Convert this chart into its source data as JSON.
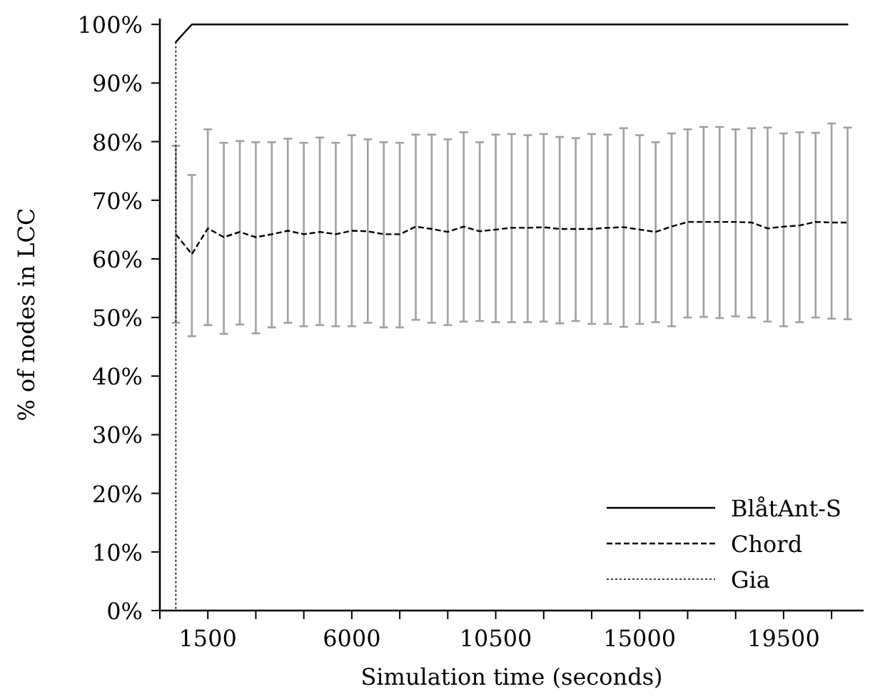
{
  "chart_data": {
    "type": "line",
    "xlabel": "Simulation time (seconds)",
    "ylabel": "% of nodes in LCC",
    "xlim": [
      0,
      22000
    ],
    "xticks": [
      {
        "value": 0,
        "label": null
      },
      {
        "value": 1500,
        "label": "1500"
      },
      {
        "value": 3000,
        "label": null
      },
      {
        "value": 4500,
        "label": null
      },
      {
        "value": 6000,
        "label": "6000"
      },
      {
        "value": 7500,
        "label": null
      },
      {
        "value": 9000,
        "label": null
      },
      {
        "value": 10500,
        "label": "10500"
      },
      {
        "value": 12000,
        "label": null
      },
      {
        "value": 13500,
        "label": null
      },
      {
        "value": 15000,
        "label": "15000"
      },
      {
        "value": 16500,
        "label": null
      },
      {
        "value": 18000,
        "label": null
      },
      {
        "value": 19500,
        "label": "19500"
      },
      {
        "value": 21000,
        "label": null
      }
    ],
    "ylim": [
      0,
      101
    ],
    "yticks": [
      {
        "value": 0,
        "label": "0%"
      },
      {
        "value": 10,
        "label": "10%"
      },
      {
        "value": 20,
        "label": "20%"
      },
      {
        "value": 30,
        "label": "30%"
      },
      {
        "value": 40,
        "label": "40%"
      },
      {
        "value": 50,
        "label": "50%"
      },
      {
        "value": 60,
        "label": "60%"
      },
      {
        "value": 70,
        "label": "70%"
      },
      {
        "value": 80,
        "label": "80%"
      },
      {
        "value": 90,
        "label": "90%"
      },
      {
        "value": 100,
        "label": "100%"
      }
    ],
    "grid": false,
    "legend": "bottom right",
    "marker": "none",
    "series": [
      {
        "name": "BlåtAnt-S",
        "color": "#000000",
        "line_style": "solid",
        "x": [
          500,
          1000,
          1500,
          2000,
          2500,
          3000,
          3500,
          4000,
          4500,
          5000,
          5500,
          6000,
          6500,
          7000,
          7500,
          8000,
          8500,
          9000,
          9500,
          10000,
          10500,
          11000,
          11500,
          12000,
          12500,
          13000,
          13500,
          14000,
          14500,
          15000,
          15500,
          16000,
          16500,
          17000,
          17500,
          18000,
          18500,
          19000,
          19500,
          20000,
          20500,
          21000,
          21500
        ],
        "values": [
          97,
          100,
          100,
          100,
          100,
          100,
          100,
          100,
          100,
          100,
          100,
          100,
          100,
          100,
          100,
          100,
          100,
          100,
          100,
          100,
          100,
          100,
          100,
          100,
          100,
          100,
          100,
          100,
          100,
          100,
          100,
          100,
          100,
          100,
          100,
          100,
          100,
          100,
          100,
          100,
          100,
          100,
          100
        ]
      },
      {
        "name": "Chord",
        "color": "#000000",
        "line_style": "dashed",
        "x": [
          500,
          1000,
          1500,
          2000,
          2500,
          3000,
          3500,
          4000,
          4500,
          5000,
          5500,
          6000,
          6500,
          7000,
          7500,
          8000,
          8500,
          9000,
          9500,
          10000,
          10500,
          11000,
          11500,
          12000,
          12500,
          13000,
          13500,
          14000,
          14500,
          15000,
          15500,
          16000,
          16500,
          17000,
          17500,
          18000,
          18500,
          19000,
          19500,
          20000,
          20500,
          21000,
          21500
        ],
        "values": [
          64.2,
          60.8,
          65.2,
          63.7,
          64.6,
          63.7,
          64.2,
          64.8,
          64.2,
          64.6,
          64.2,
          64.8,
          64.7,
          64.2,
          64.2,
          65.5,
          65.1,
          64.6,
          65.5,
          64.7,
          65.0,
          65.3,
          65.3,
          65.4,
          65.1,
          65.1,
          65.1,
          65.3,
          65.4,
          65.0,
          64.6,
          65.5,
          66.3,
          66.3,
          66.3,
          66.3,
          66.2,
          65.2,
          65.5,
          65.7,
          66.3,
          66.2,
          66.2
        ],
        "errors": [
          [
            49.1,
            79.3
          ],
          [
            46.8,
            74.3
          ],
          [
            48.7,
            82.1
          ],
          [
            47.2,
            79.8
          ],
          [
            48.8,
            80.1
          ],
          [
            47.3,
            79.9
          ],
          [
            48.3,
            79.9
          ],
          [
            49.1,
            80.5
          ],
          [
            48.5,
            79.8
          ],
          [
            48.7,
            80.7
          ],
          [
            48.5,
            79.8
          ],
          [
            48.5,
            81.1
          ],
          [
            49.1,
            80.4
          ],
          [
            48.3,
            79.9
          ],
          [
            48.3,
            79.8
          ],
          [
            49.6,
            81.2
          ],
          [
            49.1,
            81.2
          ],
          [
            48.7,
            80.4
          ],
          [
            49.3,
            81.6
          ],
          [
            49.4,
            79.9
          ],
          [
            49.2,
            81.2
          ],
          [
            49.2,
            81.3
          ],
          [
            49.2,
            81.1
          ],
          [
            49.3,
            81.3
          ],
          [
            49.0,
            80.8
          ],
          [
            49.4,
            80.6
          ],
          [
            48.9,
            81.3
          ],
          [
            48.9,
            81.2
          ],
          [
            48.4,
            82.3
          ],
          [
            48.9,
            81.1
          ],
          [
            49.2,
            79.9
          ],
          [
            48.5,
            81.4
          ],
          [
            50.0,
            82.1
          ],
          [
            50.1,
            82.5
          ],
          [
            49.9,
            82.5
          ],
          [
            50.2,
            82.1
          ],
          [
            50.0,
            82.3
          ],
          [
            49.3,
            82.4
          ],
          [
            48.5,
            81.4
          ],
          [
            49.2,
            81.6
          ],
          [
            50.0,
            81.5
          ],
          [
            49.8,
            83.1
          ],
          [
            49.7,
            82.4
          ]
        ]
      },
      {
        "name": "Gia",
        "color": "#000000",
        "line_style": "dotted",
        "x": [
          500,
          500
        ],
        "values": [
          97,
          0
        ]
      }
    ]
  }
}
